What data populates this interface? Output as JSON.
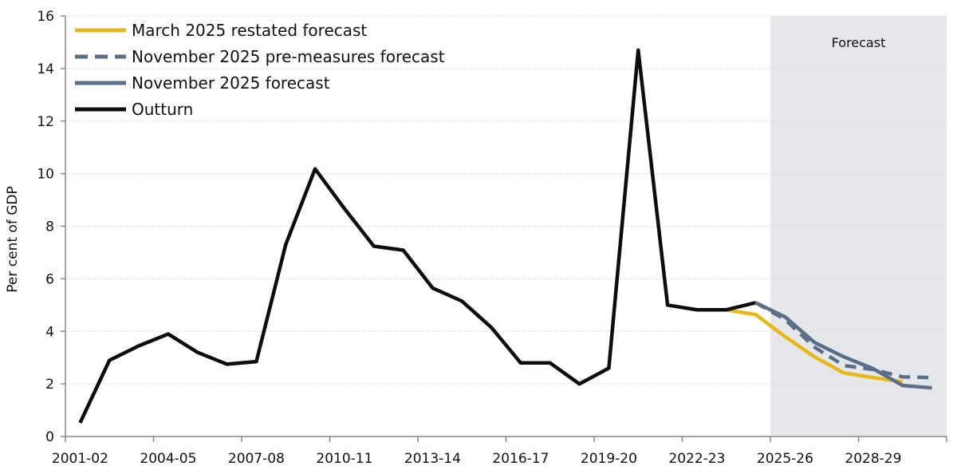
{
  "chart_data": {
    "type": "line",
    "ylabel": "Per cent of GDP",
    "ylim": [
      0,
      16
    ],
    "yticks": [
      0,
      2,
      4,
      6,
      8,
      10,
      12,
      14,
      16
    ],
    "grid": true,
    "legend_placement": "top-left",
    "categories": [
      "2001-02",
      "2002-03",
      "2003-04",
      "2004-05",
      "2005-06",
      "2006-07",
      "2007-08",
      "2008-09",
      "2009-10",
      "2010-11",
      "2011-12",
      "2012-13",
      "2013-14",
      "2014-15",
      "2015-16",
      "2016-17",
      "2017-18",
      "2018-19",
      "2019-20",
      "2020-21",
      "2021-22",
      "2022-23",
      "2023-24",
      "2024-25",
      "2025-26",
      "2026-27",
      "2027-28",
      "2028-29",
      "2029-30",
      "2030-31"
    ],
    "xtick_labels": [
      "2001-02",
      "2004-05",
      "2007-08",
      "2010-11",
      "2013-14",
      "2016-17",
      "2019-20",
      "2022-23",
      "2025-26",
      "2028-29"
    ],
    "shaded_region": {
      "label": "Forecast",
      "from": "2025-26",
      "to": "2030-31",
      "color": "#e6e7eb"
    },
    "series": [
      {
        "name": "March 2025 restated forecast",
        "color": "#e8b718",
        "dash": false,
        "x": [
          "2023-24",
          "2024-25",
          "2025-26",
          "2026-27",
          "2027-28",
          "2028-29",
          "2029-30"
        ],
        "values": [
          4.82,
          4.64,
          3.8,
          3.03,
          2.42,
          2.24,
          2.08
        ]
      },
      {
        "name": "November 2025 pre-measures forecast",
        "color": "#5b6f88",
        "dash": true,
        "x": [
          "2024-25",
          "2025-26",
          "2026-27",
          "2027-28",
          "2028-29",
          "2029-30",
          "2030-31"
        ],
        "values": [
          5.09,
          4.45,
          3.4,
          2.7,
          2.55,
          2.27,
          2.24
        ]
      },
      {
        "name": "November 2025 forecast",
        "color": "#5b6f88",
        "dash": false,
        "x": [
          "2024-25",
          "2025-26",
          "2026-27",
          "2027-28",
          "2028-29",
          "2029-30",
          "2030-31"
        ],
        "values": [
          5.09,
          4.55,
          3.58,
          3.03,
          2.58,
          1.94,
          1.85
        ]
      },
      {
        "name": "Outturn",
        "color": "#0d0d0d",
        "dash": false,
        "x": [
          "2001-02",
          "2002-03",
          "2003-04",
          "2004-05",
          "2005-06",
          "2006-07",
          "2007-08",
          "2008-09",
          "2009-10",
          "2010-11",
          "2011-12",
          "2012-13",
          "2013-14",
          "2014-15",
          "2015-16",
          "2016-17",
          "2017-18",
          "2018-19",
          "2019-20",
          "2020-21",
          "2021-22",
          "2022-23",
          "2023-24",
          "2024-25"
        ],
        "values": [
          0.52,
          2.9,
          3.45,
          3.9,
          3.2,
          2.75,
          2.85,
          7.3,
          10.18,
          8.67,
          7.24,
          7.09,
          5.65,
          5.15,
          4.15,
          2.8,
          2.8,
          2.0,
          2.6,
          14.7,
          5.0,
          4.82,
          4.82,
          5.09
        ]
      }
    ]
  }
}
